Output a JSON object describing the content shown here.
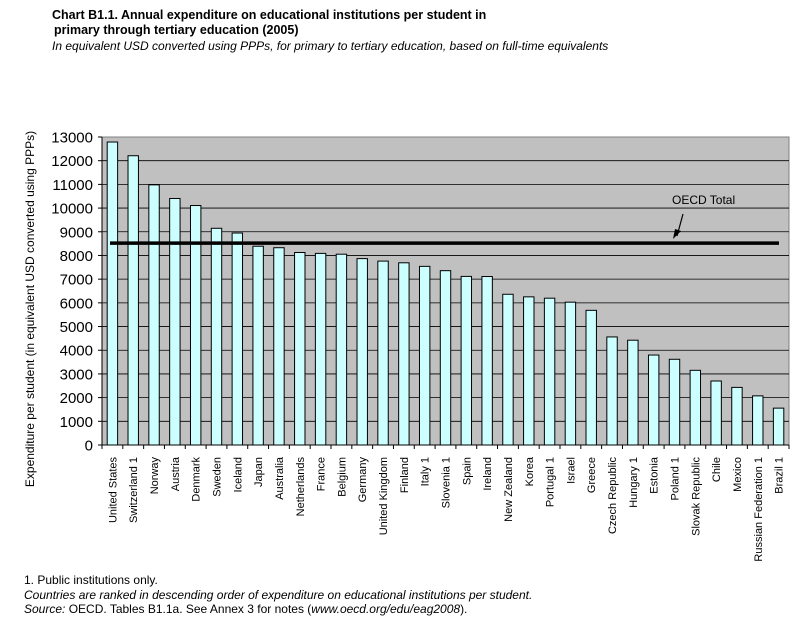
{
  "chart_title_line1": "Chart B1.1. Annual expenditure on educational institutions per student in",
  "chart_title_line2": "primary through tertiary education (2005)",
  "subtitle": "In equivalent USD converted using PPPs, for primary to tertiary education, based on full-time equivalents",
  "footnote": "1. Public institutions only.",
  "ranking_note": "Countries are ranked in descending order of expenditure on educational institutions per student.",
  "source_label": "Source:",
  "source_text": " OECD. Tables B1.1a. See Annex 3 for notes (",
  "source_url": "www.oecd.org/edu/eag2008",
  "source_end": ").",
  "colors": {
    "bar_fill": "#ccffff",
    "plot_bg": "#c0c0c0",
    "oecd_line": "#000000"
  },
  "chart_data": {
    "type": "bar",
    "ylabel": "Expenditure per student (in equivalent USD converted using PPPs)",
    "ylim": [
      0,
      13000
    ],
    "yticks": [
      0,
      1000,
      2000,
      3000,
      4000,
      5000,
      6000,
      7000,
      8000,
      9000,
      10000,
      11000,
      12000,
      13000
    ],
    "grid": true,
    "categories": [
      "United States",
      "Switzerland 1",
      "Norway",
      "Austria",
      "Denmark",
      "Sweden",
      "Iceland",
      "Japan",
      "Australia",
      "Netherlands",
      "France",
      "Belgium",
      "Germany",
      "United Kingdom",
      "Finland",
      "Italy 1",
      "Slovenia 1",
      "Spain",
      "Ireland",
      "New Zealand",
      "Korea",
      "Portugal 1",
      "Israel",
      "Greece",
      "Czech Republic",
      "Hungary 1",
      "Estonia",
      "Poland 1",
      "Slovak Republic",
      "Chile",
      "Mexico",
      "Russian Federation 1",
      "Brazil 1"
    ],
    "values": [
      12788,
      12209,
      10980,
      10405,
      10108,
      9147,
      8947,
      8389,
      8327,
      8125,
      8087,
      8053,
      7867,
      7762,
      7690,
      7540,
      7358,
      7116,
      7111,
      6362,
      6253,
      6196,
      6028,
      5684,
      4561,
      4423,
      3797,
      3618,
      3152,
      2701,
      2431,
      2074,
      1556
    ],
    "reference_line": {
      "label": "OECD Total",
      "value": 8520
    }
  }
}
